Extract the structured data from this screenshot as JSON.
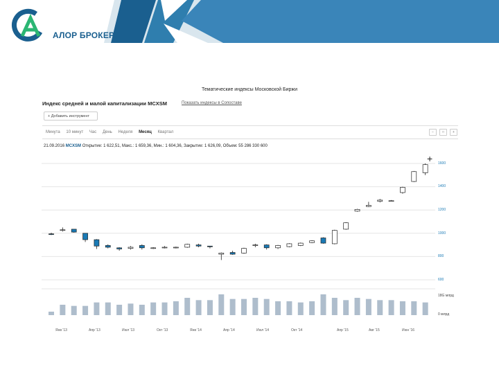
{
  "brand": {
    "name": "АЛОР БРОКЕР",
    "accent": "#1a5f8f",
    "green": "#2bb673"
  },
  "panel": {
    "title": "Тематические индексы Московской Биржи",
    "index_title": "Индекс средней и малой капитализации MCXSM",
    "index_link": "Показать индексы в Сопоставе",
    "add_tool": "+ Добавить инструмент"
  },
  "tabs": [
    "Минута",
    "10 минут",
    "Час",
    "День",
    "Неделя",
    "Месяц",
    "Квартал"
  ],
  "active_tab": "Месяц",
  "info": {
    "date": "21.09.2016",
    "symbol": "MCXSM",
    "ohlc": "Открытие: 1 622,51,  Макс.: 1 659,36,  Мин.: 1 604,36,  Закрытие: 1 626,09,  Объем: 55 286 330 600"
  },
  "tool_icons": [
    "zoom-out-icon",
    "fullscreen-icon",
    "crosshair-icon"
  ],
  "chart_data": {
    "type": "candlestick",
    "up_color": "#ffffff",
    "down_color": "#1a7ab5",
    "y_ticks": [
      "1600",
      "1400",
      "1200",
      "1000",
      "800",
      "600"
    ],
    "y_range": [
      600,
      1600
    ],
    "volume_ticks": [
      "18G млрд",
      "0 млрд"
    ],
    "x_labels": [
      "Янв '13",
      "Апр '13",
      "Июл '13",
      "Окт '13",
      "Янв '14",
      "Апр '14",
      "Июл '14",
      "Окт '14",
      "Апр '15",
      "Авг '15",
      "Июн '16"
    ],
    "candles": [
      {
        "o": 995,
        "h": 1005,
        "l": 985,
        "c": 990
      },
      {
        "o": 1030,
        "h": 1050,
        "l": 1015,
        "c": 1030
      },
      {
        "o": 1035,
        "h": 1035,
        "l": 1005,
        "c": 1010
      },
      {
        "o": 1000,
        "h": 1000,
        "l": 925,
        "c": 945
      },
      {
        "o": 945,
        "h": 950,
        "l": 865,
        "c": 890
      },
      {
        "o": 895,
        "h": 905,
        "l": 870,
        "c": 880
      },
      {
        "o": 875,
        "h": 880,
        "l": 850,
        "c": 865
      },
      {
        "o": 870,
        "h": 890,
        "l": 860,
        "c": 880
      },
      {
        "o": 895,
        "h": 905,
        "l": 860,
        "c": 875
      },
      {
        "o": 870,
        "h": 880,
        "l": 865,
        "c": 875
      },
      {
        "o": 880,
        "h": 890,
        "l": 870,
        "c": 880
      },
      {
        "o": 880,
        "h": 885,
        "l": 870,
        "c": 880
      },
      {
        "o": 880,
        "h": 910,
        "l": 875,
        "c": 905
      },
      {
        "o": 900,
        "h": 910,
        "l": 880,
        "c": 890
      },
      {
        "o": 890,
        "h": 890,
        "l": 870,
        "c": 885
      },
      {
        "o": 820,
        "h": 835,
        "l": 770,
        "c": 830
      },
      {
        "o": 835,
        "h": 850,
        "l": 815,
        "c": 820
      },
      {
        "o": 830,
        "h": 875,
        "l": 825,
        "c": 870
      },
      {
        "o": 895,
        "h": 910,
        "l": 880,
        "c": 900
      },
      {
        "o": 900,
        "h": 905,
        "l": 860,
        "c": 875
      },
      {
        "o": 875,
        "h": 900,
        "l": 865,
        "c": 895
      },
      {
        "o": 885,
        "h": 915,
        "l": 880,
        "c": 910
      },
      {
        "o": 895,
        "h": 920,
        "l": 890,
        "c": 915
      },
      {
        "o": 920,
        "h": 940,
        "l": 915,
        "c": 935
      },
      {
        "o": 960,
        "h": 965,
        "l": 910,
        "c": 915
      },
      {
        "o": 910,
        "h": 1030,
        "l": 905,
        "c": 1025
      },
      {
        "o": 1035,
        "h": 1095,
        "l": 1030,
        "c": 1090
      },
      {
        "o": 1190,
        "h": 1210,
        "l": 1185,
        "c": 1205
      },
      {
        "o": 1230,
        "h": 1270,
        "l": 1225,
        "c": 1240
      },
      {
        "o": 1275,
        "h": 1295,
        "l": 1265,
        "c": 1285
      },
      {
        "o": 1280,
        "h": 1285,
        "l": 1275,
        "c": 1280
      },
      {
        "o": 1350,
        "h": 1400,
        "l": 1340,
        "c": 1395
      },
      {
        "o": 1445,
        "h": 1535,
        "l": 1440,
        "c": 1530
      },
      {
        "o": 1520,
        "h": 1600,
        "l": 1500,
        "c": 1590
      }
    ],
    "volumes": [
      3,
      9,
      8,
      8,
      11,
      11,
      9,
      10,
      9,
      11,
      11,
      12,
      15,
      13,
      13,
      18,
      14,
      14,
      15,
      14,
      12,
      12,
      11,
      12,
      18,
      15,
      13,
      15,
      14,
      13,
      13,
      12,
      12,
      11
    ]
  }
}
